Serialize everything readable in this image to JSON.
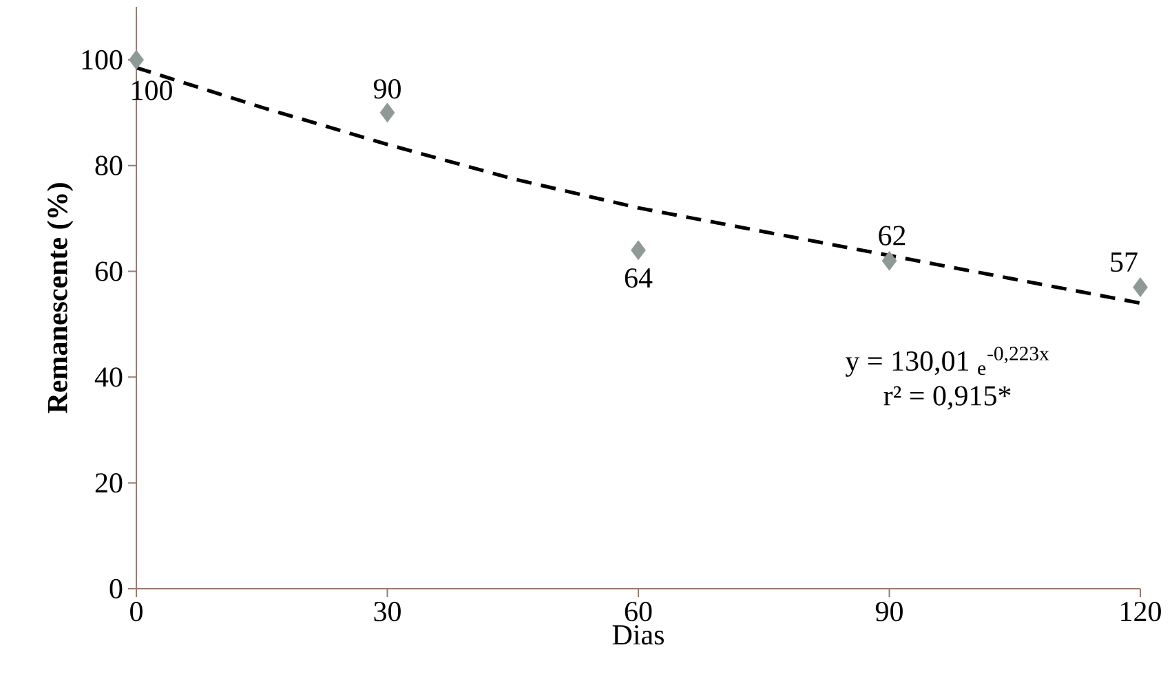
{
  "chart_data": {
    "type": "scatter",
    "xlabel": "Dias",
    "ylabel": "Remanescente (%)",
    "annotations": [
      "y = 130,01 $_{e}$$^{-0,223x}$",
      "r² = 0,915*"
    ],
    "xlim": [
      0,
      120
    ],
    "xticks": [
      0,
      30,
      60,
      90,
      120
    ],
    "ylim": [
      0,
      110
    ],
    "yticks": [
      0,
      20,
      40,
      60,
      80,
      100
    ],
    "series": [
      {
        "color": "#8f9a96",
        "marker": "diamond",
        "data_labels": true,
        "x": [
          0,
          30,
          60,
          90,
          120
        ],
        "values": [
          100,
          90,
          64,
          62,
          57
        ]
      },
      {
        "type": "line",
        "color": "#000000",
        "line_style": "dashed",
        "marker": "none",
        "x": [
          0,
          15,
          30,
          45,
          60,
          75,
          90,
          105,
          120
        ],
        "values": [
          98.5,
          91,
          84,
          77.5,
          72,
          67.5,
          63,
          58.5,
          54
        ]
      }
    ]
  }
}
